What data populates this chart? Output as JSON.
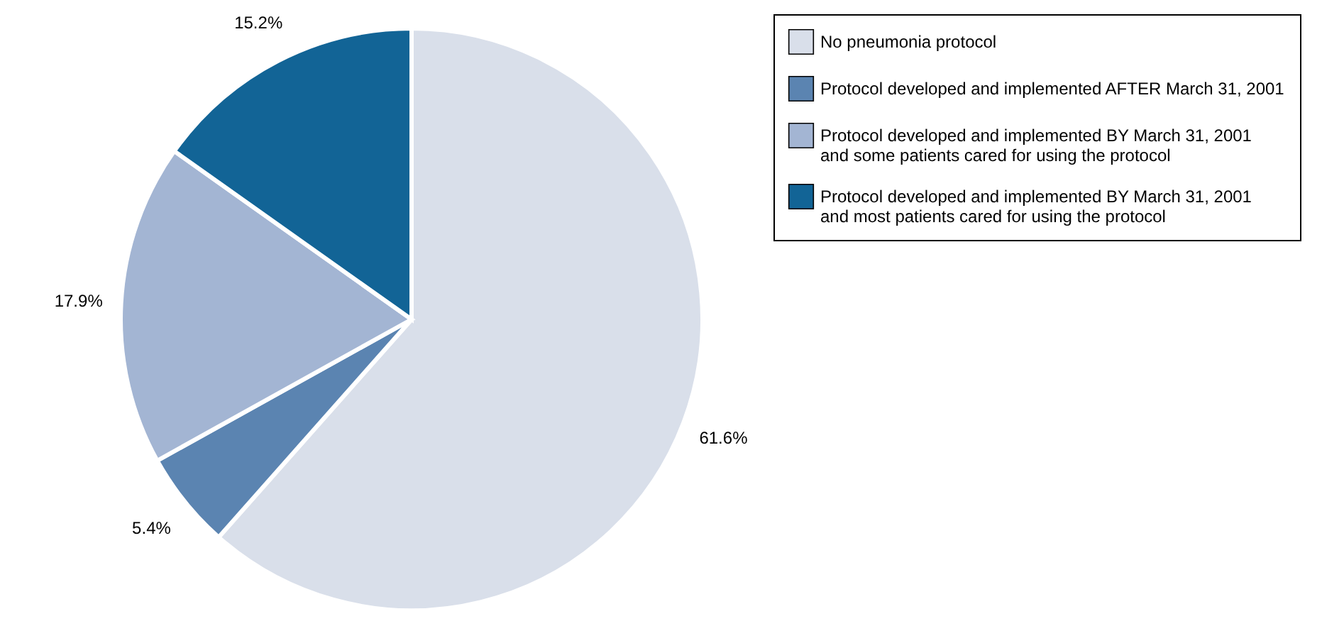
{
  "chart_data": {
    "type": "pie",
    "categories": [
      "No pneumonia protocol",
      "Protocol developed and implemented AFTER March 31, 2001",
      "Protocol developed and implemented BY March 31, 2001\nand some patients cared for using the protocol",
      "Protocol developed and implemented BY March 31, 2001\nand most patients cared for using the protocol"
    ],
    "values": [
      61.6,
      5.4,
      17.9,
      15.2
    ],
    "value_labels": [
      "61.6%",
      "5.4%",
      "17.9%",
      "15.2%"
    ],
    "colors": [
      "#d9dfea",
      "#5b84b1",
      "#a3b5d3",
      "#126496"
    ],
    "legend": "top right"
  }
}
